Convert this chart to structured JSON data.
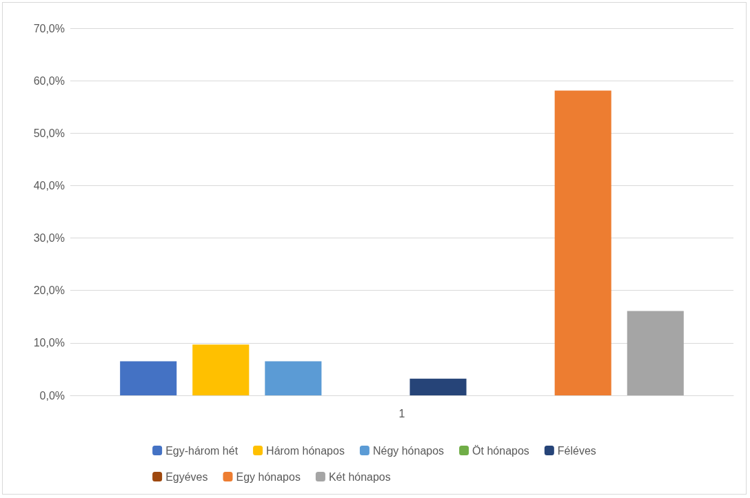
{
  "chart_data": {
    "type": "bar",
    "categories": [
      "1"
    ],
    "series": [
      {
        "name": "Egy-három hét",
        "color": "#4472c4",
        "values": [
          6.5
        ]
      },
      {
        "name": "Három hónapos",
        "color": "#ffc000",
        "values": [
          9.7
        ]
      },
      {
        "name": "Négy hónapos",
        "color": "#5b9bd5",
        "values": [
          6.5
        ]
      },
      {
        "name": "Öt hónapos",
        "color": "#70ad47",
        "values": [
          0
        ]
      },
      {
        "name": "Féléves",
        "color": "#264478",
        "values": [
          3.2
        ]
      },
      {
        "name": "Egyéves",
        "color": "#9e480e",
        "values": [
          0
        ]
      },
      {
        "name": "Egy hónapos",
        "color": "#ed7d31",
        "values": [
          58.1
        ]
      },
      {
        "name": "Két hónapos",
        "color": "#a5a5a5",
        "values": [
          16.1
        ]
      }
    ],
    "ylim": [
      0,
      70
    ],
    "yticks": [
      {
        "value": 0,
        "label": "0,0%"
      },
      {
        "value": 10,
        "label": "10,0%"
      },
      {
        "value": 20,
        "label": "20,0%"
      },
      {
        "value": 30,
        "label": "30,0%"
      },
      {
        "value": 40,
        "label": "40,0%"
      },
      {
        "value": 50,
        "label": "50,0%"
      },
      {
        "value": 60,
        "label": "60,0%"
      },
      {
        "value": 70,
        "label": "70,0%"
      }
    ],
    "grid": "y",
    "legend": "bottom"
  }
}
